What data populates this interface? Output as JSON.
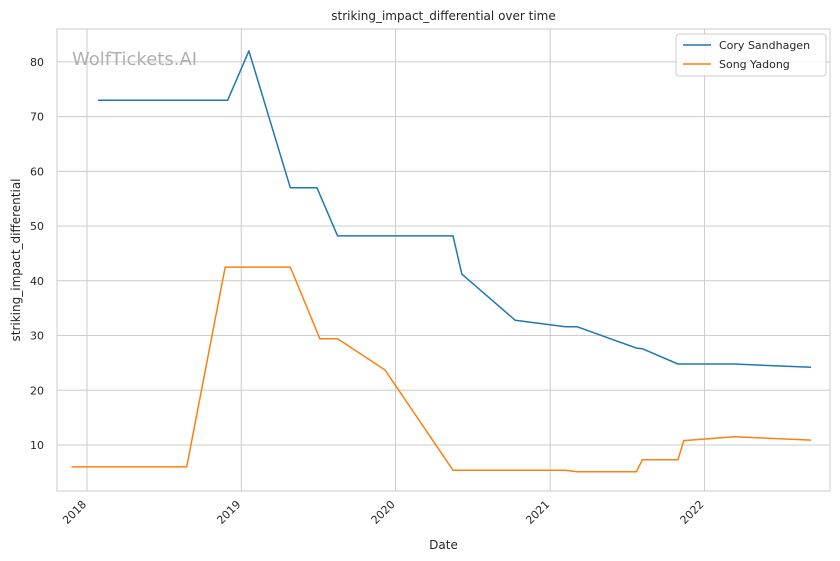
{
  "chart_data": {
    "type": "line",
    "title": "striking_impact_differential over time",
    "xlabel": "Date",
    "ylabel": "striking_impact_differential",
    "watermark": "WolfTickets.AI",
    "grid": true,
    "legend_position": "top-right",
    "xlim": [
      "2017-10-22",
      "2022-10-25"
    ],
    "ylim": [
      1.6,
      86
    ],
    "x_ticks": [
      "2018",
      "2019",
      "2020",
      "2021",
      "2022"
    ],
    "y_ticks": [
      10,
      20,
      30,
      40,
      50,
      60,
      70,
      80
    ],
    "series": [
      {
        "name": "Cory Sandhagen",
        "color": "#1f77b4",
        "points": [
          {
            "x": "2018-01-27",
            "y": 73
          },
          {
            "x": "2018-11-30",
            "y": 73
          },
          {
            "x": "2019-01-19",
            "y": 82
          },
          {
            "x": "2019-04-27",
            "y": 57
          },
          {
            "x": "2019-06-29",
            "y": 57
          },
          {
            "x": "2019-08-17",
            "y": 48.2
          },
          {
            "x": "2020-05-16",
            "y": 48.2
          },
          {
            "x": "2020-06-06",
            "y": 41.2
          },
          {
            "x": "2020-10-10",
            "y": 32.8
          },
          {
            "x": "2021-02-06",
            "y": 31.6
          },
          {
            "x": "2021-03-06",
            "y": 31.6
          },
          {
            "x": "2021-07-24",
            "y": 27.7
          },
          {
            "x": "2021-08-07",
            "y": 27.6
          },
          {
            "x": "2021-10-30",
            "y": 24.8
          },
          {
            "x": "2022-03-12",
            "y": 24.8
          },
          {
            "x": "2022-09-10",
            "y": 24.2
          }
        ]
      },
      {
        "name": "Song Yadong",
        "color": "#ff7f0e",
        "points": [
          {
            "x": "2017-11-25",
            "y": 6
          },
          {
            "x": "2018-08-25",
            "y": 6
          },
          {
            "x": "2018-11-24",
            "y": 42.5
          },
          {
            "x": "2019-04-27",
            "y": 42.5
          },
          {
            "x": "2019-07-06",
            "y": 29.4
          },
          {
            "x": "2019-08-17",
            "y": 29.4
          },
          {
            "x": "2019-12-07",
            "y": 23.7
          },
          {
            "x": "2020-05-16",
            "y": 5.4
          },
          {
            "x": "2021-02-06",
            "y": 5.4
          },
          {
            "x": "2021-03-06",
            "y": 5.1
          },
          {
            "x": "2021-07-24",
            "y": 5.1
          },
          {
            "x": "2021-08-07",
            "y": 7.3
          },
          {
            "x": "2021-10-30",
            "y": 7.3
          },
          {
            "x": "2021-11-13",
            "y": 10.8
          },
          {
            "x": "2022-03-12",
            "y": 11.5
          },
          {
            "x": "2022-09-10",
            "y": 10.9
          }
        ]
      }
    ]
  }
}
